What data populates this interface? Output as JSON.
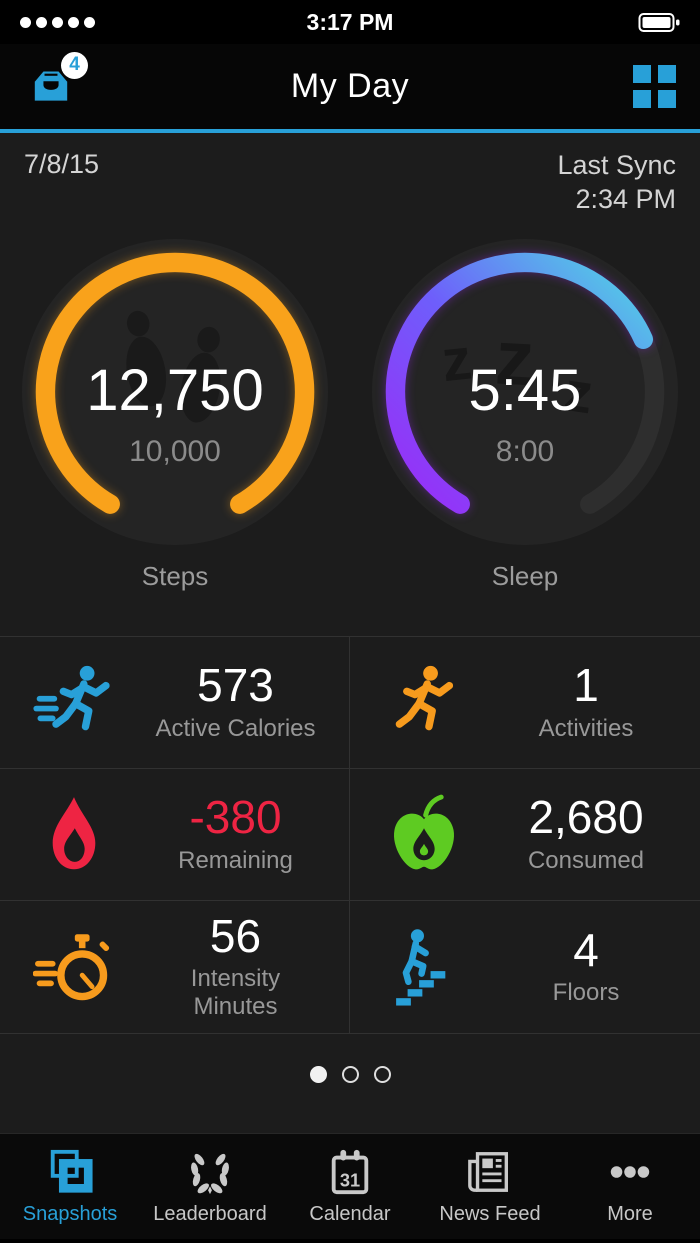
{
  "colors": {
    "accent": "#28a0d8",
    "orange": "#f79b1d",
    "red": "#ee2443",
    "green": "#5ecb22",
    "purple": "#9b2bf7",
    "cyan": "#4fd9e4"
  },
  "status_bar": {
    "time": "3:17 PM",
    "signal_icon": "signal-dots-icon",
    "battery_icon": "battery-icon"
  },
  "header": {
    "title": "My Day",
    "inbox_icon": "inbox-icon",
    "inbox_badge": "4",
    "grid_icon": "grid-menu-icon"
  },
  "sync_row": {
    "date": "7/8/15",
    "sync_label": "Last Sync",
    "sync_time": "2:34 PM"
  },
  "gauges": [
    {
      "label": "Steps",
      "value": "12,750",
      "goal": "10,000",
      "progress": 1.0,
      "gradient": [
        "#f9a21b",
        "#f9a21b"
      ],
      "icon": "footprints-icon"
    },
    {
      "label": "Sleep",
      "value": "5:45",
      "goal": "8:00",
      "progress": 0.72,
      "gradient": [
        "#9b2bf7",
        "#6e5efb",
        "#4fd9e4"
      ],
      "icon": "zzz-icon"
    }
  ],
  "stats": [
    {
      "value": "573",
      "label": "Active Calories",
      "icon": "runner-speed-icon",
      "icon_color": "#28a0d8"
    },
    {
      "value": "1",
      "label": "Activities",
      "icon": "runner-icon",
      "icon_color": "#f79b1d"
    },
    {
      "value": "-380",
      "label": "Remaining",
      "icon": "flame-icon",
      "icon_color": "#ee2443"
    },
    {
      "value": "2,680",
      "label": "Consumed",
      "icon": "apple-icon",
      "icon_color": "#5ecb22"
    },
    {
      "value": "56",
      "label": "Intensity Minutes",
      "icon": "stopwatch-speed-icon",
      "icon_color": "#f79b1d"
    },
    {
      "value": "4",
      "label": "Floors",
      "icon": "stairs-climb-icon",
      "icon_color": "#28a0d8"
    }
  ],
  "pager": {
    "page_count": 3,
    "active_page": 1
  },
  "tab_bar": {
    "tabs": [
      {
        "label": "Snapshots",
        "icon": "snapshots-icon",
        "active": true
      },
      {
        "label": "Leaderboard",
        "icon": "leaderboard-icon",
        "active": false
      },
      {
        "label": "Calendar",
        "icon": "calendar-icon",
        "active": false,
        "day": "31"
      },
      {
        "label": "News Feed",
        "icon": "news-feed-icon",
        "active": false
      },
      {
        "label": "More",
        "icon": "more-icon",
        "active": false
      }
    ]
  }
}
